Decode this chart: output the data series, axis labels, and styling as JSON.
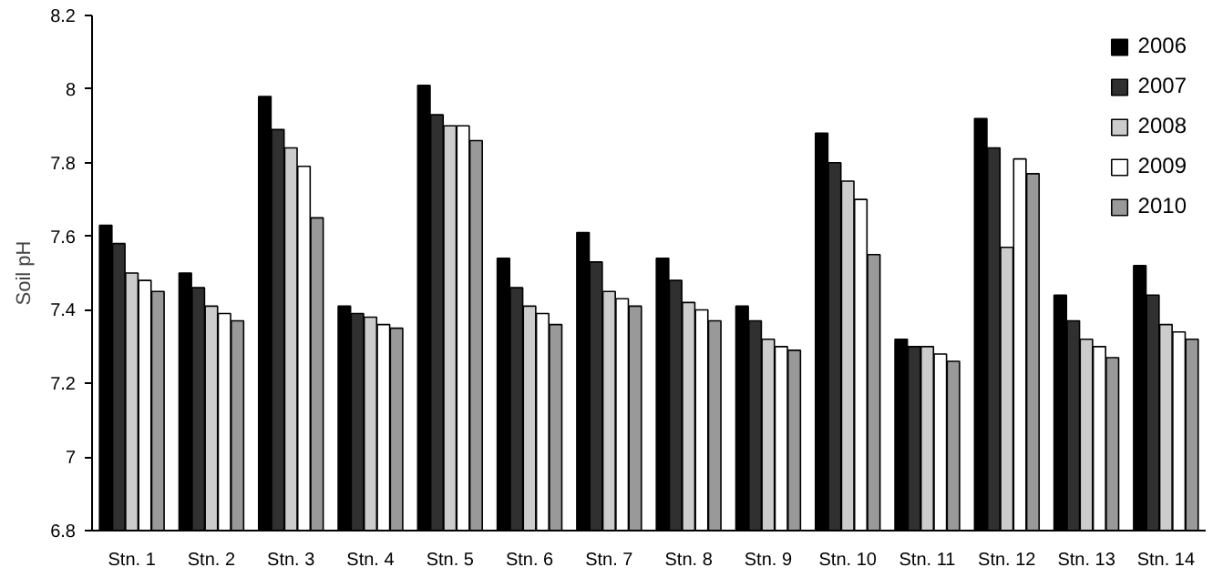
{
  "chart_data": {
    "type": "bar",
    "ylabel": "Soil pH",
    "categories": [
      "Stn. 1",
      "Stn. 2",
      "Stn. 3",
      "Stn. 4",
      "Stn. 5",
      "Stn. 6",
      "Stn. 7",
      "Stn. 8",
      "Stn. 9",
      "Stn. 10",
      "Stn. 11",
      "Stn. 12",
      "Stn. 13",
      "Stn. 14"
    ],
    "series": [
      {
        "name": "2006",
        "color": "#000000",
        "values": [
          7.63,
          7.5,
          7.98,
          7.41,
          8.01,
          7.54,
          7.61,
          7.54,
          7.41,
          7.88,
          7.32,
          7.92,
          7.44,
          7.52
        ]
      },
      {
        "name": "2007",
        "color": "#303030",
        "values": [
          7.58,
          7.46,
          7.89,
          7.39,
          7.93,
          7.46,
          7.53,
          7.48,
          7.37,
          7.8,
          7.3,
          7.84,
          7.37,
          7.44
        ]
      },
      {
        "name": "2008",
        "color": "#cccccc",
        "values": [
          7.5,
          7.41,
          7.84,
          7.38,
          7.9,
          7.41,
          7.45,
          7.42,
          7.32,
          7.75,
          7.3,
          7.57,
          7.32,
          7.36
        ]
      },
      {
        "name": "2009",
        "color": "#ffffff",
        "values": [
          7.48,
          7.39,
          7.79,
          7.36,
          7.9,
          7.39,
          7.43,
          7.4,
          7.3,
          7.7,
          7.28,
          7.81,
          7.3,
          7.34
        ]
      },
      {
        "name": "2010",
        "color": "#999999",
        "values": [
          7.45,
          7.37,
          7.65,
          7.35,
          7.86,
          7.36,
          7.41,
          7.37,
          7.29,
          7.55,
          7.26,
          7.77,
          7.27,
          7.32
        ]
      }
    ],
    "ylim": [
      6.8,
      8.2
    ],
    "yticks": [
      6.8,
      7,
      7.2,
      7.4,
      7.6,
      7.8,
      8,
      8.2
    ],
    "grid": false,
    "legend": "top right"
  }
}
